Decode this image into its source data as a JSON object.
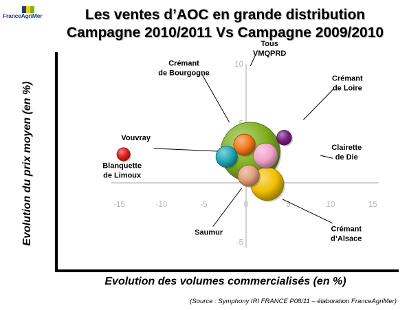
{
  "logo": {
    "text": "FranceAgriMer",
    "colors": [
      "#1e3f8a",
      "#f4d100",
      "#7ab51d"
    ]
  },
  "chart_data": {
    "type": "scatter",
    "title": "Les ventes d’AOC en grande distribution",
    "subtitle": "Campagne 2010/2011 Vs Campagne 2009/2010",
    "xlabel": "Evolution des volumes commercialisés (en %)",
    "ylabel": "Evolution du prix moyen (en %)",
    "xlim": [
      -15,
      15
    ],
    "ylim": [
      -5,
      10
    ],
    "xticks": [
      "-15",
      "-10",
      "-5",
      "0",
      "5",
      "10",
      "15"
    ],
    "yticks": [
      "-5",
      "5",
      "10"
    ],
    "source": "(Source : Symphony IRI FRANCE  P08/11 – élaboration FranceAgriMer)",
    "series": [
      {
        "label": "Tous VMQPRD",
        "x": 0.5,
        "y": 2.6,
        "size": 3.6,
        "color": "#7fb01e"
      },
      {
        "label": "Crémant de Bourgogne",
        "x": -0.2,
        "y": 3.2,
        "size": 1.3,
        "color": "#f07a1a"
      },
      {
        "label": "Crémant de Loire",
        "x": 4.5,
        "y": 3.8,
        "size": 0.9,
        "color": "#7a1f80"
      },
      {
        "label": "Vouvray",
        "x": -2.3,
        "y": 2.2,
        "size": 1.3,
        "color": "#22a8b8"
      },
      {
        "label": "Clairette de Die",
        "x": 2.3,
        "y": 2.3,
        "size": 1.5,
        "color": "#f0a4c8"
      },
      {
        "label": "Blanquette de Limoux",
        "x": -14.5,
        "y": 2.4,
        "size": 0.8,
        "color": "#e41e1e"
      },
      {
        "label": "Saumur",
        "x": 0.3,
        "y": 0.6,
        "size": 1.3,
        "color": "#e0a078"
      },
      {
        "label": "Crémant d’Alsace",
        "x": 2.5,
        "y": -0.1,
        "size": 2.0,
        "color": "#f2c000"
      }
    ]
  }
}
